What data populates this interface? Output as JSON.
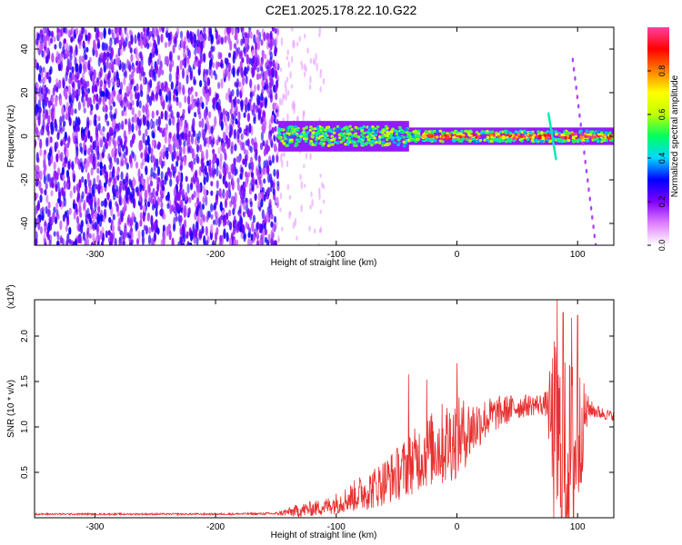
{
  "title": "C2E1.2025.178.22.10.G22",
  "chart_data": [
    {
      "type": "heatmap",
      "xlabel": "Height of straight line (km)",
      "ylabel": "Frequency (Hz)",
      "xlim": [
        -350,
        130
      ],
      "ylim": [
        -50,
        50
      ],
      "x_ticks": [
        -300,
        -200,
        -100,
        0,
        100
      ],
      "y_ticks": [
        -40,
        -20,
        0,
        20,
        40
      ],
      "x_tick_labels": [
        "-300",
        "-200",
        "-100",
        "0",
        "100"
      ],
      "y_tick_labels": [
        "-40",
        "-20",
        "0",
        "20",
        "40"
      ],
      "colorbar": {
        "label": "Normalized spectral amplitude",
        "range": [
          0,
          1
        ],
        "ticks": [
          0.0,
          0.2,
          0.4,
          0.6,
          0.8
        ],
        "tick_labels": [
          "0.0",
          "0.2",
          "0.4",
          "0.6",
          "0.8"
        ],
        "colors": [
          "#ffffff",
          "#e080ff",
          "#8000ff",
          "#0000ff",
          "#00d8ff",
          "#00ff60",
          "#c0ff00",
          "#ffff00",
          "#ff8000",
          "#ff0000",
          "#ff40a0"
        ]
      },
      "regions": [
        {
          "x_range": [
            -350,
            -148
          ],
          "freq_range": [
            -50,
            50
          ],
          "description_level": 0.2
        },
        {
          "x_range": [
            -148,
            130
          ],
          "center_freq": 0,
          "half_width_hz": 5,
          "peak_level": 0.9
        }
      ],
      "streaks": [
        {
          "x": [
            96,
            115
          ],
          "freq": [
            35,
            -50
          ]
        },
        {
          "x": [
            76,
            82
          ],
          "freq": [
            10,
            -10
          ]
        }
      ],
      "grid": false
    },
    {
      "type": "line",
      "xlabel": "Height of straight line (km)",
      "ylabel": "SNR (10 * v/v)",
      "y_multiplier_label": "(x10",
      "y_multiplier_exp": "4",
      "y_multiplier_close": ")",
      "xlim": [
        -350,
        130
      ],
      "ylim": [
        0,
        24000
      ],
      "x_ticks": [
        -300,
        -200,
        -100,
        0,
        100
      ],
      "y_ticks": [
        5000,
        10000,
        15000,
        20000
      ],
      "x_tick_labels": [
        "-300",
        "-200",
        "-100",
        "0",
        "100"
      ],
      "y_tick_labels": [
        "0.5",
        "1.0",
        "1.5",
        "2.0"
      ],
      "color": "#e83030",
      "series": [
        {
          "x": [
            -350,
            -300,
            -250,
            -200,
            -150,
            -130,
            -110,
            -100,
            -90,
            -80,
            -70,
            -60,
            -50,
            -40,
            -30,
            -20,
            -10,
            0,
            10,
            20,
            30,
            40,
            50,
            60,
            70,
            75,
            80,
            85,
            90,
            95,
            100,
            105,
            110,
            120,
            130
          ],
          "y": [
            400,
            400,
            400,
            400,
            450,
            800,
            1200,
            1600,
            2100,
            2700,
            3200,
            4000,
            4800,
            5800,
            6800,
            7600,
            8200,
            8800,
            9600,
            10600,
            11300,
            11800,
            12200,
            12400,
            12500,
            12500,
            9000,
            7000,
            6000,
            7000,
            7500,
            11000,
            12000,
            11500,
            11200
          ],
          "spread": [
            100,
            100,
            100,
            100,
            150,
            800,
            900,
            1200,
            1500,
            2000,
            2300,
            2600,
            3000,
            3400,
            3800,
            4200,
            4800,
            4500,
            3600,
            2600,
            2000,
            1700,
            1400,
            1200,
            1200,
            1500,
            11000,
            12000,
            11500,
            11000,
            10500,
            4000,
            1000,
            700,
            500
          ],
          "spikes": [
            {
              "x": -40,
              "y": 15800
            },
            {
              "x": -25,
              "y": 15200
            },
            {
              "x": 0,
              "y": 17000
            },
            {
              "x": 83,
              "y": 24000
            },
            {
              "x": 88,
              "y": 22600
            },
            {
              "x": 95,
              "y": 22000
            },
            {
              "x": 100,
              "y": 22300
            }
          ]
        }
      ],
      "grid": false
    }
  ]
}
